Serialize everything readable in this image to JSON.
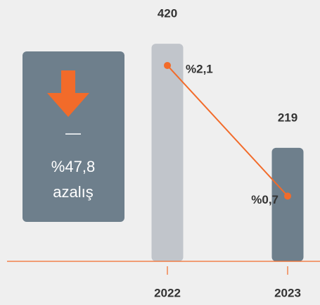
{
  "chart_data": {
    "type": "bar",
    "categories": [
      "2022",
      "2023"
    ],
    "values": [
      420,
      219
    ],
    "colors": [
      "#c1c5cb",
      "#6e7f8c"
    ],
    "ylim": [
      0,
      450
    ],
    "line": {
      "values": [
        2.1,
        0.7
      ],
      "value_labels": [
        "%2,1",
        "%0,7"
      ],
      "color": "#f26b2a",
      "axis": "y2"
    },
    "y2lim": [
      0,
      2.5
    ],
    "callout": {
      "dash": "—",
      "value": "%47,8",
      "label": "azalış",
      "color": "#6e7f8c",
      "arrow_color": "#f26b2a"
    }
  }
}
